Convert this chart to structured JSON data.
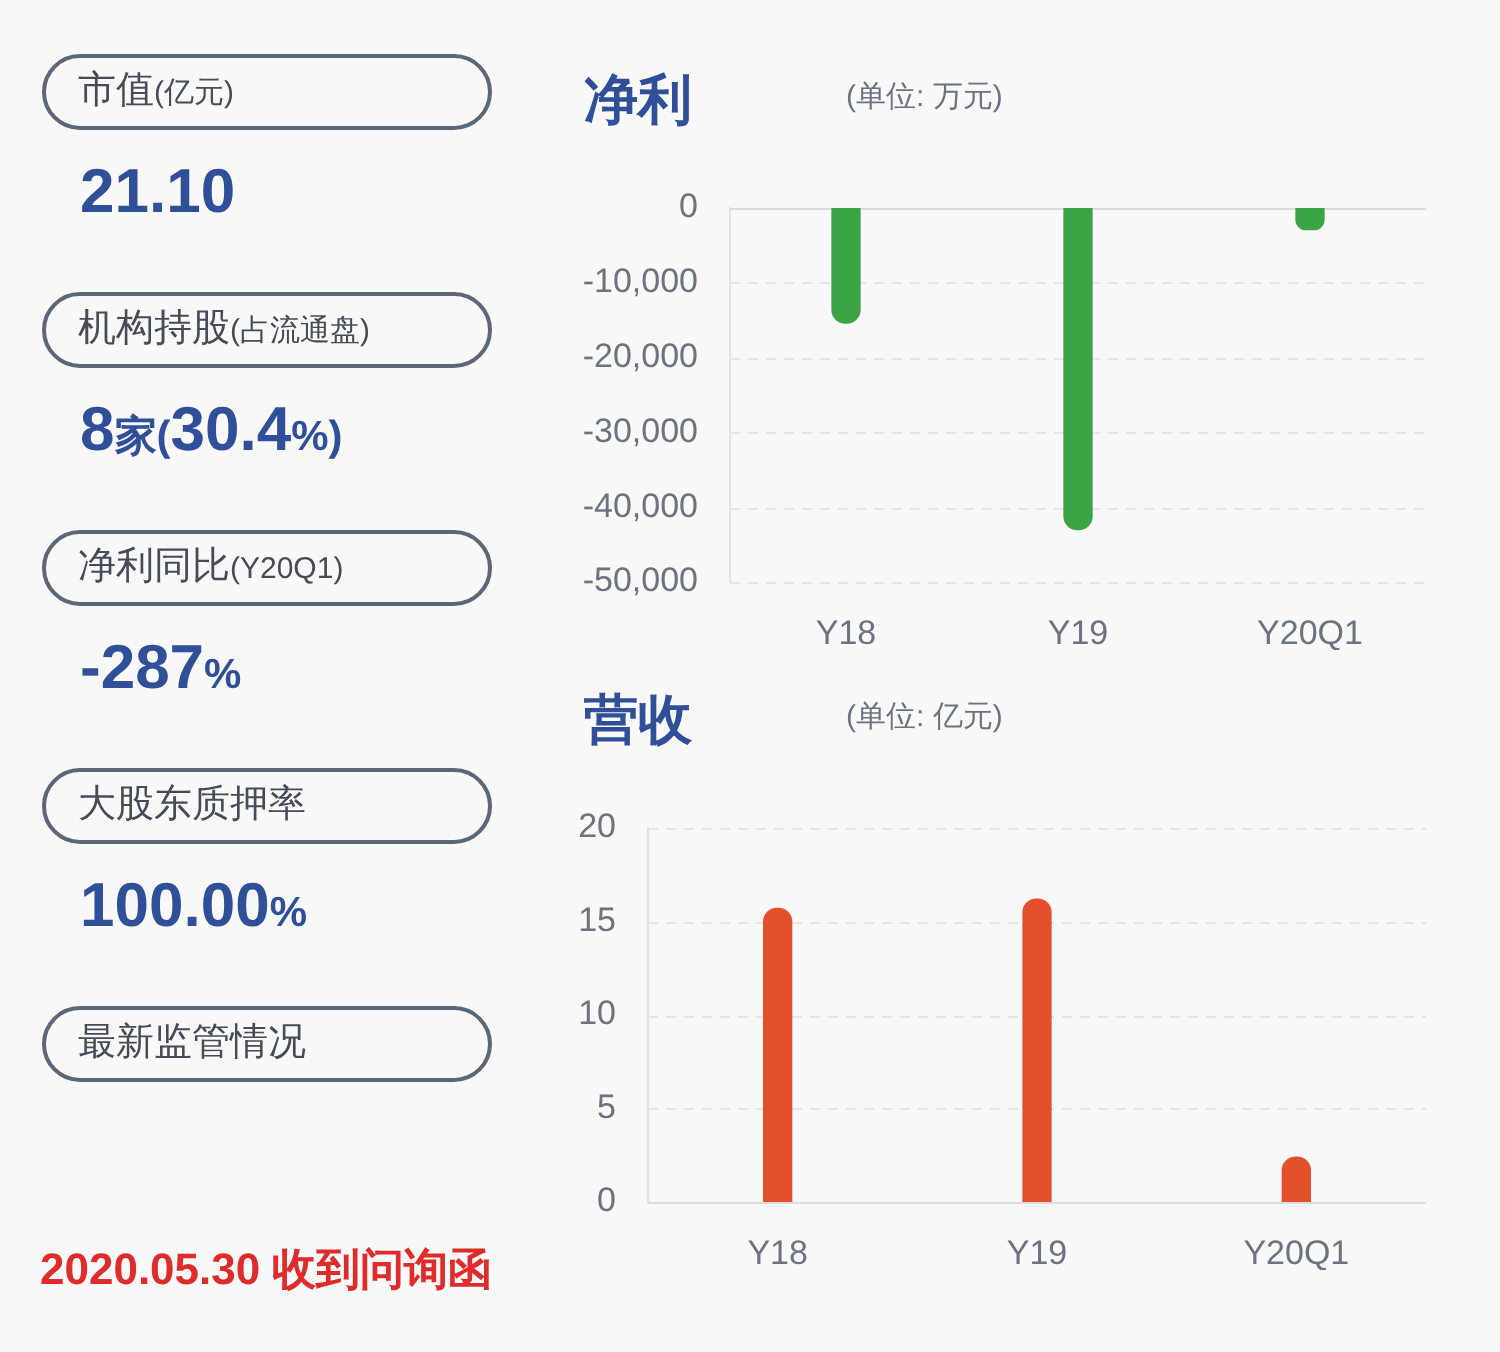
{
  "chart_data": [
    {
      "type": "other",
      "annotations": [
        "市值(亿元)",
        "21.10",
        "机构持股(占流通盘)",
        "8家(30.4%)",
        "净利同比(Y20Q1)",
        "-287%",
        "大股东质押率",
        "100.00%",
        "最新监管情况",
        "2020.05.30 收到问询函"
      ]
    },
    {
      "type": "bar",
      "title": "净利",
      "subtitle": "(单位: 万元)",
      "categories": [
        "Y18",
        "Y19",
        "Y20Q1"
      ],
      "values": [
        -15400,
        -43000,
        -2900
      ],
      "color": "#3da445",
      "ylim": [
        -50000,
        0
      ],
      "yticks": [
        {
          "value": -50000,
          "label": "-50,000"
        },
        {
          "value": -40000,
          "label": "-40,000"
        },
        {
          "value": -30000,
          "label": "-30,000"
        },
        {
          "value": -20000,
          "label": "-20,000"
        },
        {
          "value": -10000,
          "label": "-10,000"
        },
        0
      ],
      "grid": "y"
    },
    {
      "type": "bar",
      "title": "营收",
      "subtitle": "(单位: 亿元)",
      "categories": [
        "Y18",
        "Y19",
        "Y20Q1"
      ],
      "values": [
        15.7,
        16.2,
        2.4
      ],
      "color": "#e4502b",
      "ylim": [
        0,
        20
      ],
      "yticks": [
        0,
        5,
        10,
        15,
        20
      ],
      "grid": "y"
    }
  ]
}
